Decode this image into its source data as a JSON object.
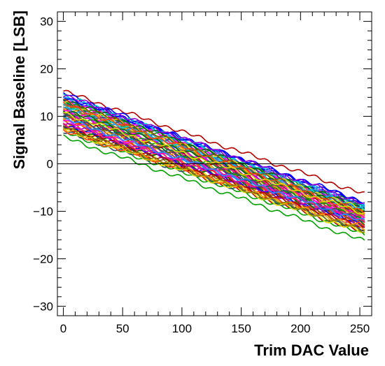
{
  "chart_data": {
    "type": "line",
    "title": "",
    "xlabel": "Trim DAC Value",
    "ylabel": "Signal Baseline [LSB]",
    "xlim": [
      -5,
      260
    ],
    "ylim": [
      -32,
      32
    ],
    "xticks": [
      0,
      50,
      100,
      150,
      200,
      250
    ],
    "xtick_labels": [
      "0",
      "50",
      "100",
      "150",
      "200",
      "250"
    ],
    "yticks": [
      -30,
      -20,
      -10,
      0,
      10,
      20,
      30
    ],
    "ytick_labels": [
      "−30",
      "−20",
      "−10",
      "0",
      "10",
      "20",
      "30"
    ],
    "reference_line": {
      "y": 0,
      "color": "#000000"
    },
    "grid": false,
    "legend": "none",
    "colors": [
      "#b00000",
      "#00a000",
      "#0000ff",
      "#ff00ff",
      "#00c8c8",
      "#ffa500",
      "#2f4f6f",
      "#8b4513",
      "#ff1493",
      "#006400",
      "#9400d3",
      "#1e90ff",
      "#ff4500",
      "#808000",
      "#e0e000"
    ],
    "series_summary": {
      "count": 60,
      "x_start": 0,
      "x_end": 255,
      "start_range": [
        5.5,
        15.5
      ],
      "end_range": [
        -16.5,
        -6.5
      ]
    },
    "series": [
      {
        "x": [
          0,
          255
        ],
        "y": [
          15.3,
          -6.5
        ]
      },
      {
        "x": [
          0,
          255
        ],
        "y": [
          5.6,
          -16.4
        ]
      },
      {
        "x": [
          0,
          255
        ],
        "y": [
          14.9,
          -9.0
        ]
      },
      {
        "x": [
          0,
          255
        ],
        "y": [
          13.8,
          -9.8
        ]
      },
      {
        "x": [
          0,
          255
        ],
        "y": [
          13.2,
          -10.2
        ]
      },
      {
        "x": [
          0,
          255
        ],
        "y": [
          12.5,
          -10.6
        ]
      },
      {
        "x": [
          0,
          255
        ],
        "y": [
          12.0,
          -11.0
        ]
      },
      {
        "x": [
          0,
          255
        ],
        "y": [
          11.4,
          -11.4
        ]
      },
      {
        "x": [
          0,
          255
        ],
        "y": [
          11.0,
          -11.8
        ]
      },
      {
        "x": [
          0,
          255
        ],
        "y": [
          10.5,
          -12.2
        ]
      },
      {
        "x": [
          0,
          255
        ],
        "y": [
          10.0,
          -12.6
        ]
      },
      {
        "x": [
          0,
          255
        ],
        "y": [
          9.6,
          -13.0
        ]
      },
      {
        "x": [
          0,
          255
        ],
        "y": [
          9.1,
          -13.4
        ]
      },
      {
        "x": [
          0,
          255
        ],
        "y": [
          8.6,
          -13.8
        ]
      },
      {
        "x": [
          0,
          255
        ],
        "y": [
          8.0,
          -14.2
        ]
      },
      {
        "x": [
          0,
          255
        ],
        "y": [
          7.4,
          -14.6
        ]
      },
      {
        "x": [
          0,
          255
        ],
        "y": [
          6.8,
          -15.0
        ]
      },
      {
        "x": [
          0,
          255
        ],
        "y": [
          14.2,
          -8.4
        ]
      },
      {
        "x": [
          0,
          255
        ],
        "y": [
          13.5,
          -9.4
        ]
      },
      {
        "x": [
          0,
          255
        ],
        "y": [
          12.8,
          -10.0
        ]
      }
    ]
  }
}
